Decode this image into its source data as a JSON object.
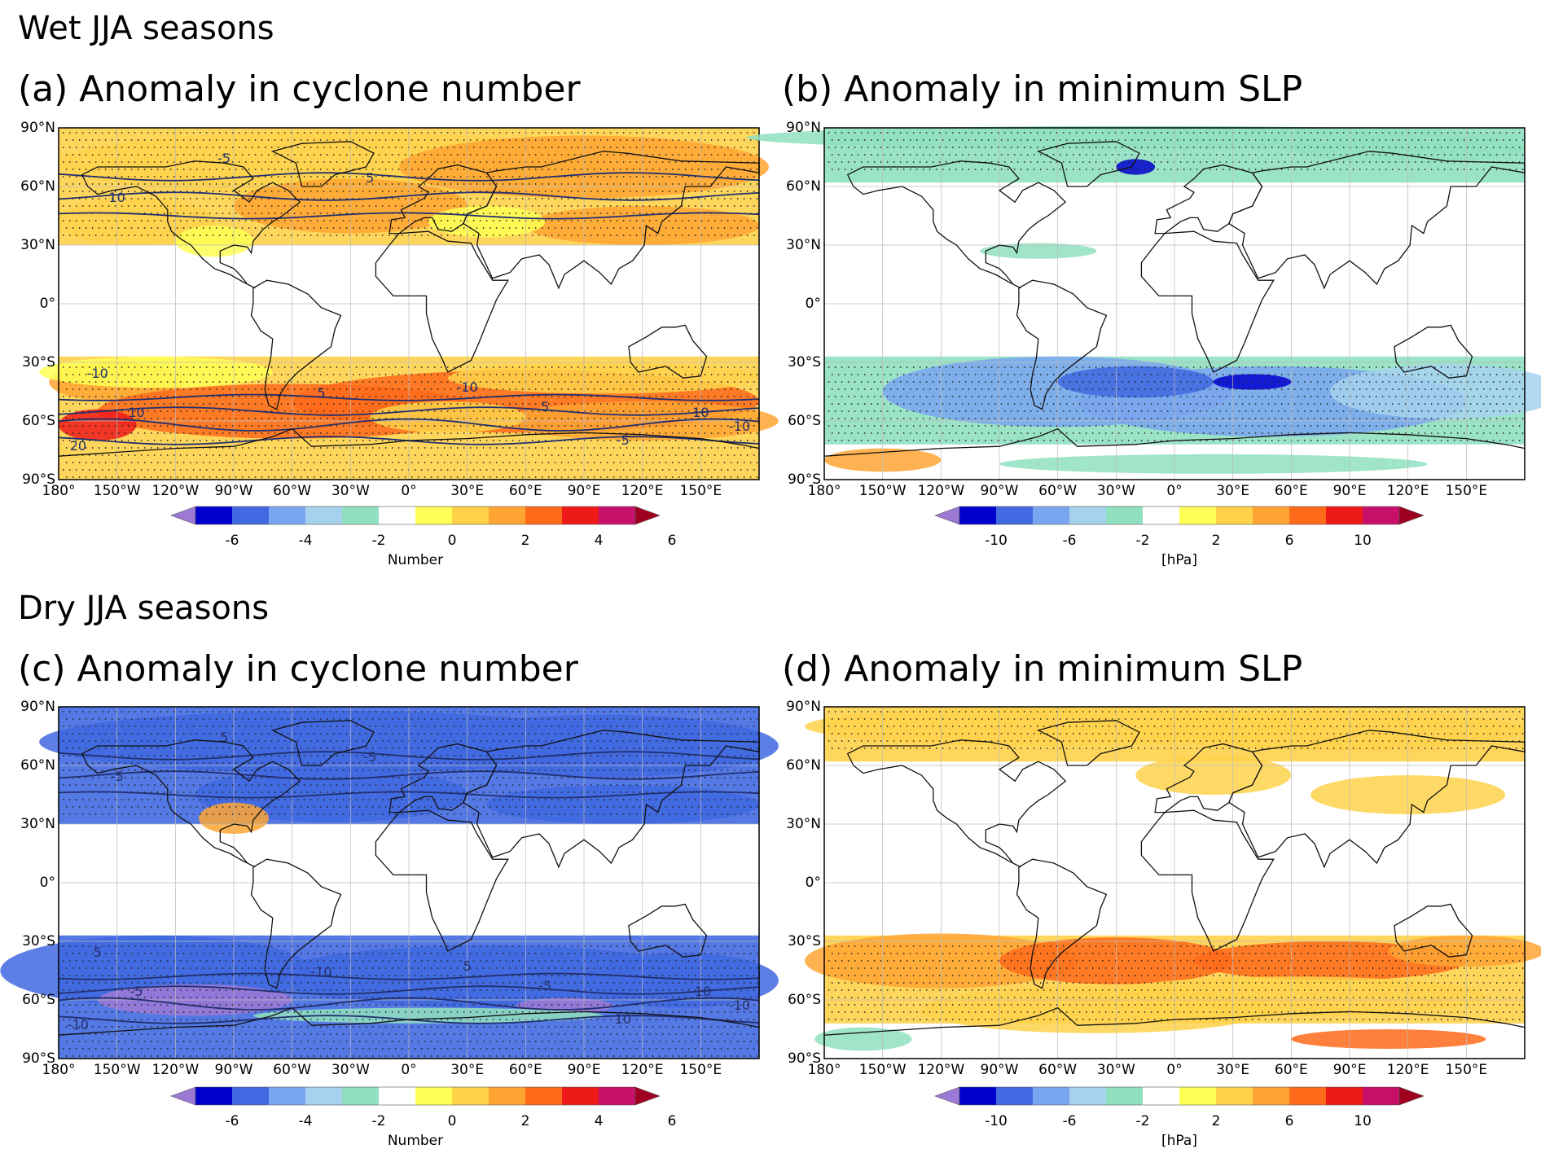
{
  "sections": {
    "wet": "Wet JJA seasons",
    "dry": "Dry JJA seasons"
  },
  "panels": [
    {
      "id": "a",
      "title": "(a) Anomaly in cyclone number",
      "variable": "cyclone_number",
      "season": "wet",
      "dominant_sign": "positive",
      "colorbar": "number"
    },
    {
      "id": "b",
      "title": "(b) Anomaly in minimum SLP",
      "variable": "minimum_slp",
      "season": "wet",
      "dominant_sign": "negative",
      "colorbar": "slp"
    },
    {
      "id": "c",
      "title": "(c) Anomaly in cyclone number",
      "variable": "cyclone_number",
      "season": "dry",
      "dominant_sign": "negative",
      "colorbar": "number"
    },
    {
      "id": "d",
      "title": "(d) Anomaly in minimum SLP",
      "variable": "minimum_slp",
      "season": "dry",
      "dominant_sign": "positive",
      "colorbar": "slp"
    }
  ],
  "axes": {
    "lat_labels": [
      "90°N",
      "60°N",
      "30°N",
      "0°",
      "30°S",
      "60°S",
      "90°S"
    ],
    "lon_labels": [
      "180°",
      "150°W",
      "120°W",
      "90°W",
      "60°W",
      "30°W",
      "0°",
      "30°E",
      "60°E",
      "90°E",
      "120°E",
      "150°E"
    ]
  },
  "colorbars": {
    "number": {
      "units": "Number",
      "tick_labels": [
        "-6",
        "-4",
        "-2",
        "0",
        "2",
        "4",
        "6"
      ],
      "colors": [
        "#9d79d6",
        "#0000cc",
        "#4169e1",
        "#7aa6f0",
        "#a6d2ee",
        "#90e0c0",
        "#ffffff",
        "#ffff55",
        "#ffd24a",
        "#ffa533",
        "#ff6a1a",
        "#ee1a1a",
        "#c8106a"
      ],
      "under_color": "#9d79d6",
      "over_color": "#a00020"
    },
    "slp": {
      "units": "[hPa]",
      "tick_labels": [
        "-10",
        "-6",
        "-2",
        "2",
        "6",
        "10"
      ],
      "colors": [
        "#9d79d6",
        "#0000cc",
        "#4169e1",
        "#7aa6f0",
        "#a6d2ee",
        "#90e0c0",
        "#ffffff",
        "#ffff55",
        "#ffd24a",
        "#ffa533",
        "#ff6a1a",
        "#ee1a1a",
        "#c8106a"
      ],
      "under_color": "#9d79d6",
      "over_color": "#a00020"
    }
  },
  "contour_labels": {
    "a": [
      "-5",
      "5",
      "10",
      "-10",
      "5",
      "10",
      "-10",
      "20",
      "-5",
      "5",
      "10",
      "-10"
    ],
    "c": [
      "5",
      "-5",
      "-5",
      "5",
      "-10",
      "-5",
      "5",
      "-10",
      "10",
      "-5",
      "-10",
      "-10"
    ]
  }
}
